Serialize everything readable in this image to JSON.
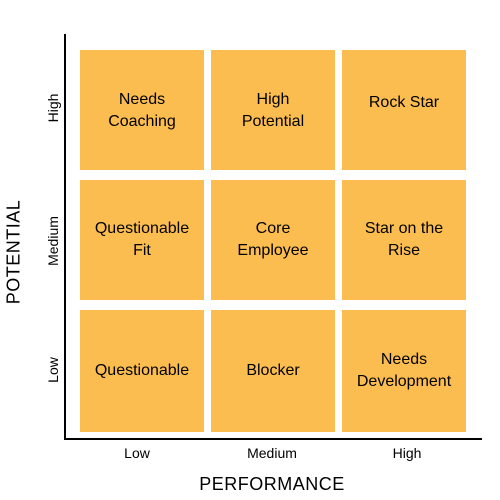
{
  "axes": {
    "y_title": "POTENTIAL",
    "x_title": "PERFORMANCE",
    "y_ticks": [
      "High",
      "Medium",
      "Low"
    ],
    "x_ticks": [
      "Low",
      "Medium",
      "High"
    ]
  },
  "grid": {
    "cell_color": "#fbbd4f",
    "rows": [
      [
        "Needs\nCoaching",
        "High\nPotential",
        "Rock Star"
      ],
      [
        "Questionable\nFit",
        "Core\nEmployee",
        "Star on the\nRise"
      ],
      [
        "Questionable",
        "Blocker",
        "Needs\nDevelopment"
      ]
    ]
  }
}
